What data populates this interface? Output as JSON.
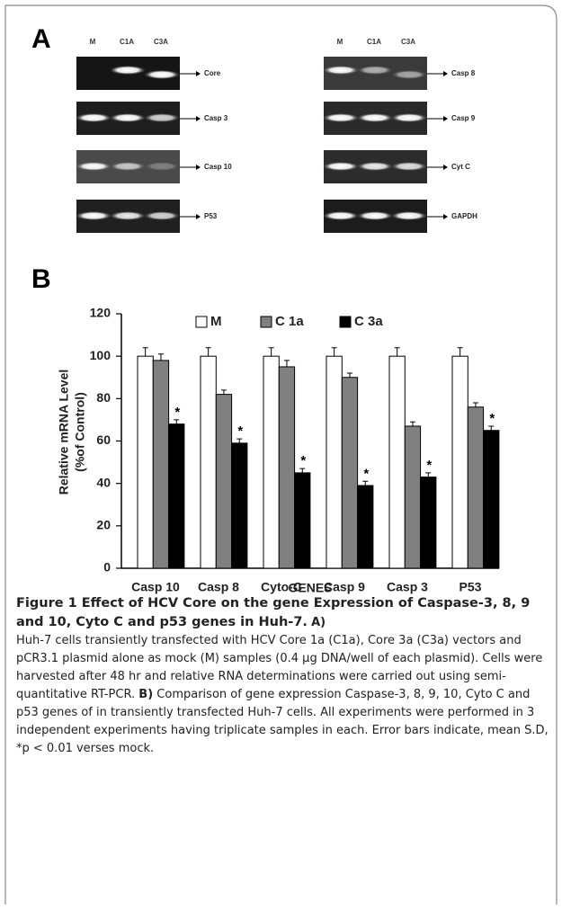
{
  "panel_a": {
    "label": "A",
    "lanes_left": [
      "M",
      "C1A",
      "C3A"
    ],
    "lanes_right": [
      "M",
      "C1A",
      "C3A"
    ],
    "gels_left": [
      "Core",
      "Casp 3",
      "Casp 10",
      "P53"
    ],
    "gels_right": [
      "Casp 8",
      "Casp 9",
      "Cyt C",
      "GAPDH"
    ]
  },
  "panel_b_label": "B",
  "chart_data": {
    "type": "bar",
    "y_label_lines": [
      "Relative mRNA Level",
      "(%of Control)"
    ],
    "x_label": "GENES",
    "categories": [
      "Casp 10",
      "Casp  8",
      "Cyto-C",
      "Casp  9",
      "Casp  3",
      "P53"
    ],
    "series": [
      {
        "name": "M",
        "color": "#ffffff",
        "values": [
          100,
          100,
          100,
          100,
          100,
          100
        ],
        "errors": [
          4,
          4,
          4,
          4,
          4,
          4
        ]
      },
      {
        "name": "C 1a",
        "color": "#808080",
        "values": [
          98,
          82,
          95,
          90,
          67,
          76
        ],
        "errors": [
          3,
          2,
          3,
          2,
          2,
          2
        ]
      },
      {
        "name": "C 3a",
        "color": "#000000",
        "values": [
          68,
          59,
          45,
          39,
          43,
          65
        ],
        "errors": [
          2,
          2,
          2,
          2,
          2,
          2
        ]
      }
    ],
    "annotations": [
      "*",
      "*",
      "*",
      "*",
      "*",
      "*"
    ],
    "ylim": [
      0,
      120
    ],
    "yticks": [
      0,
      20,
      40,
      60,
      80,
      100,
      120
    ],
    "grid": false
  },
  "caption": {
    "title": "Figure 1 Effect of HCV Core on the gene Expression of Caspase-3, 8, 9 and 10, Cyto C and p53 genes in Huh-7",
    "title_end": ".",
    "parts": [
      {
        "label": "A)",
        "text": "Huh-7 cells transiently transfected with HCV Core 1a (C1a), Core 3a (C3a) vectors and pCR3.1 plasmid alone as mock (M) samples (0.4 µg DNA/well of each plasmid). Cells were harvested after 48 hr and relative RNA determinations were carried out using semi-quantitative RT-PCR."
      },
      {
        "label": "B)",
        "text": "Comparison of gene expression Caspase-3, 8, 9, 10, Cyto C and p53 genes of in transiently transfected Huh-7 cells. All experiments were performed in 3 independent experiments having triplicate samples in each. Error bars indicate, mean S.D, *p < 0.01 verses mock."
      }
    ]
  }
}
